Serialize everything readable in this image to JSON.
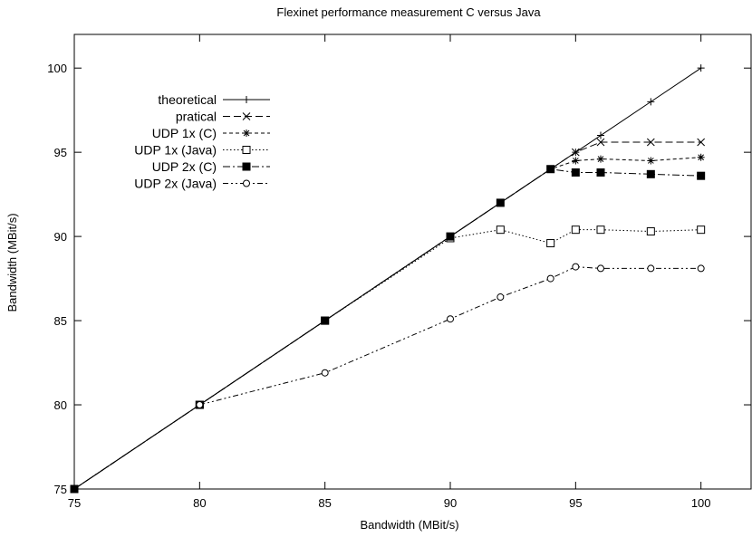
{
  "chart_data": {
    "type": "line",
    "title": "Flexinet performance measurement C versus Java",
    "xlabel": "Bandwidth (MBit/s)",
    "ylabel": "Bandwidth (MBit/s)",
    "xlim": [
      75,
      102
    ],
    "ylim": [
      75,
      102
    ],
    "xticks": [
      75,
      80,
      85,
      90,
      95,
      100
    ],
    "yticks": [
      75,
      80,
      85,
      90,
      95,
      100
    ],
    "grid": false,
    "legend_position": "top-left",
    "series": [
      {
        "name": "theoretical",
        "marker": "plus",
        "dash": "solid",
        "x": [
          75,
          80,
          85,
          90,
          92,
          94,
          95,
          96,
          98,
          100
        ],
        "y": [
          75,
          80,
          85,
          90,
          92,
          94,
          95,
          96,
          98,
          100
        ]
      },
      {
        "name": "pratical",
        "marker": "cross",
        "dash": "dashed",
        "x": [
          75,
          80,
          85,
          90,
          92,
          94,
          95,
          96,
          98,
          100
        ],
        "y": [
          75,
          80,
          85,
          90,
          92,
          94,
          95,
          95.6,
          95.6,
          95.6
        ]
      },
      {
        "name": "UDP 1x (C)",
        "marker": "star",
        "dash": "short-dashed",
        "x": [
          75,
          80,
          85,
          90,
          92,
          94,
          95,
          96,
          98,
          100
        ],
        "y": [
          75,
          80,
          85,
          90,
          92,
          94,
          94.5,
          94.6,
          94.5,
          94.7
        ]
      },
      {
        "name": "UDP 1x (Java)",
        "marker": "open-square",
        "dash": "dotted",
        "x": [
          75,
          80,
          85,
          90,
          92,
          94,
          95,
          96,
          98,
          100
        ],
        "y": [
          75,
          80,
          85,
          89.9,
          90.4,
          89.6,
          90.4,
          90.4,
          90.3,
          90.4
        ]
      },
      {
        "name": "UDP 2x (C)",
        "marker": "filled-square",
        "dash": "dash-dot",
        "x": [
          75,
          80,
          85,
          90,
          92,
          94,
          95,
          96,
          98,
          100
        ],
        "y": [
          75,
          80,
          85,
          90,
          92,
          94,
          93.8,
          93.8,
          93.7,
          93.6
        ]
      },
      {
        "name": "UDP 2x (Java)",
        "marker": "open-circle",
        "dash": "dash-dot-dot",
        "x": [
          80,
          85,
          90,
          92,
          94,
          95,
          96,
          98,
          100
        ],
        "y": [
          80,
          81.9,
          85.1,
          86.4,
          87.5,
          88.2,
          88.1,
          88.1,
          88.1
        ]
      }
    ]
  }
}
